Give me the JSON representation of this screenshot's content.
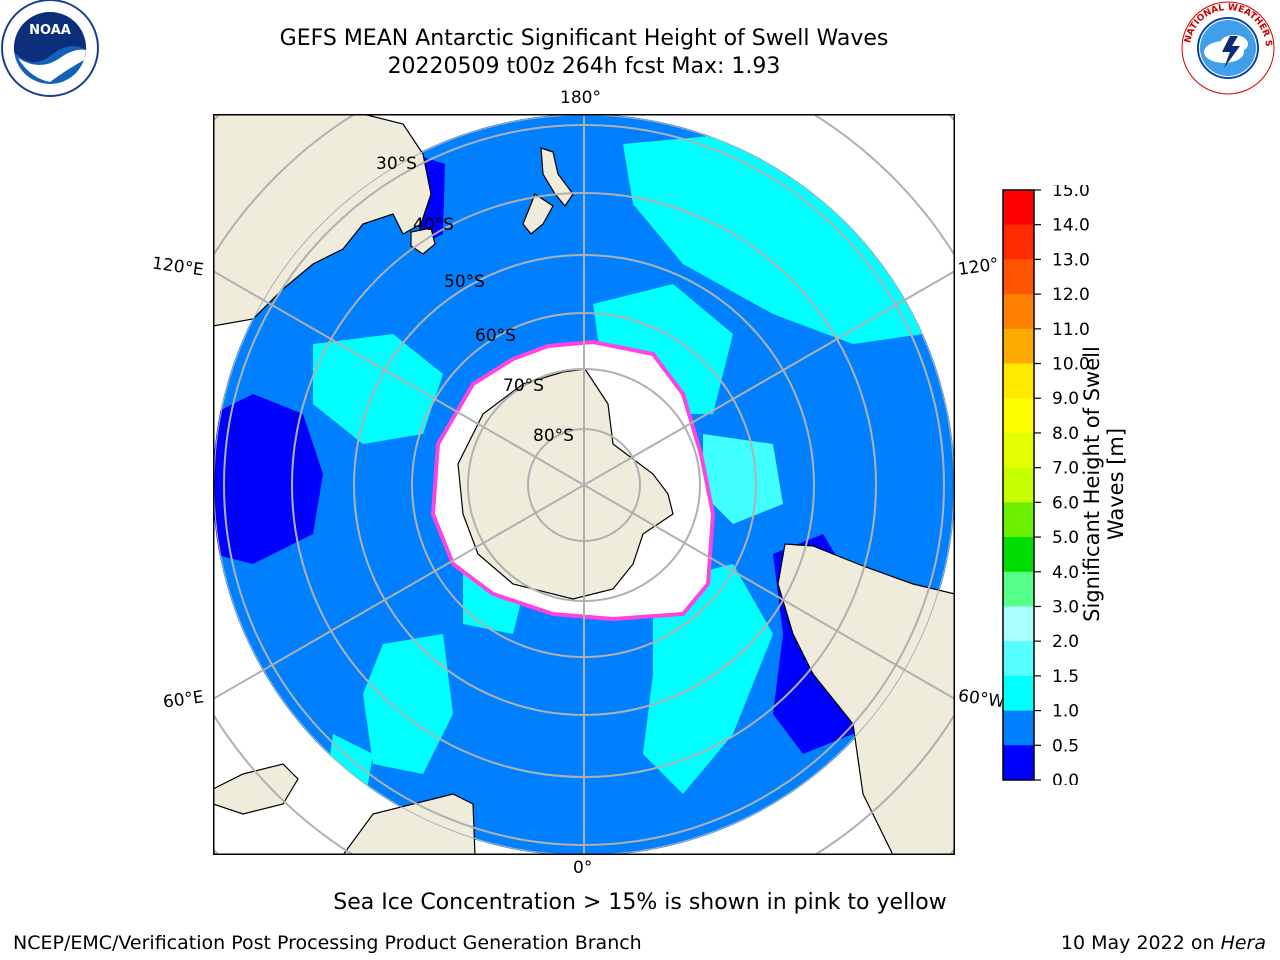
{
  "title": {
    "line1": "GEFS MEAN Antarctic Significant Height of Swell Waves",
    "line2": "20220509 t00z 264h fcst   Max: 1.93"
  },
  "caption": "Sea Ice Concentration > 15% is shown in pink to yellow",
  "footer": {
    "left": "NCEP/EMC/Verification Post Processing Product Generation Branch",
    "right_date": "10 May 2022 on ",
    "right_host": "Hera"
  },
  "logos": {
    "noaa_text": "NOAA",
    "noaa_ring": "NATIONAL OCEANIC AND ATMOSPHERIC ADMINISTRATION · U.S. DEPARTMENT OF COMMERCE",
    "nws_ring": "NATIONAL WEATHER SERVICE"
  },
  "map": {
    "projection": "south-polar-stereographic",
    "lon_labels": [
      "180°",
      "120°E",
      "120°",
      "60°E",
      "60°W",
      "0°"
    ],
    "lat_labels": [
      "30°S",
      "40°S",
      "50°S",
      "60°S",
      "70°S",
      "80°S"
    ],
    "colors": {
      "land": "#efecdc",
      "ice": "#ffffff",
      "ocean_0_05": "#0000ff",
      "ocean_05_1": "#0080ff",
      "ocean_1_15": "#00ffff",
      "ocean_15_2": "#40ffff",
      "ice_edge": "#ff44dd",
      "grid": "#b0b0b0"
    }
  },
  "colorbar": {
    "label": "Significant Height of Swell Waves [m]",
    "label_line1": "Significant Height of Swell",
    "label_line2": "Waves [m]",
    "ticks": [
      "15.0",
      "14.0",
      "13.0",
      "12.0",
      "11.0",
      "10.0",
      "9.0",
      "8.0",
      "7.0",
      "6.0",
      "5.0",
      "4.0",
      "3.0",
      "2.0",
      "1.5",
      "1.0",
      "0.5",
      "0.0"
    ],
    "bins": [
      {
        "range": "14.0-15.0",
        "color": "#ff0000"
      },
      {
        "range": "13.0-14.0",
        "color": "#ff2a00"
      },
      {
        "range": "12.0-13.0",
        "color": "#ff5500"
      },
      {
        "range": "11.0-12.0",
        "color": "#ff8000"
      },
      {
        "range": "10.0-11.0",
        "color": "#ffaa00"
      },
      {
        "range": "9.0-10.0",
        "color": "#ffea00"
      },
      {
        "range": "8.0-9.0",
        "color": "#ffff00"
      },
      {
        "range": "7.0-8.0",
        "color": "#e4ff00"
      },
      {
        "range": "6.0-7.0",
        "color": "#c8ff00"
      },
      {
        "range": "5.0-6.0",
        "color": "#6cf000"
      },
      {
        "range": "4.0-5.0",
        "color": "#00dd00"
      },
      {
        "range": "3.0-4.0",
        "color": "#55ff88"
      },
      {
        "range": "2.0-3.0",
        "color": "#aaffff"
      },
      {
        "range": "1.5-2.0",
        "color": "#55ffff"
      },
      {
        "range": "1.0-1.5",
        "color": "#00ffff"
      },
      {
        "range": "0.5-1.0",
        "color": "#0080ff"
      },
      {
        "range": "0.0-0.5",
        "color": "#0000ff"
      }
    ]
  }
}
